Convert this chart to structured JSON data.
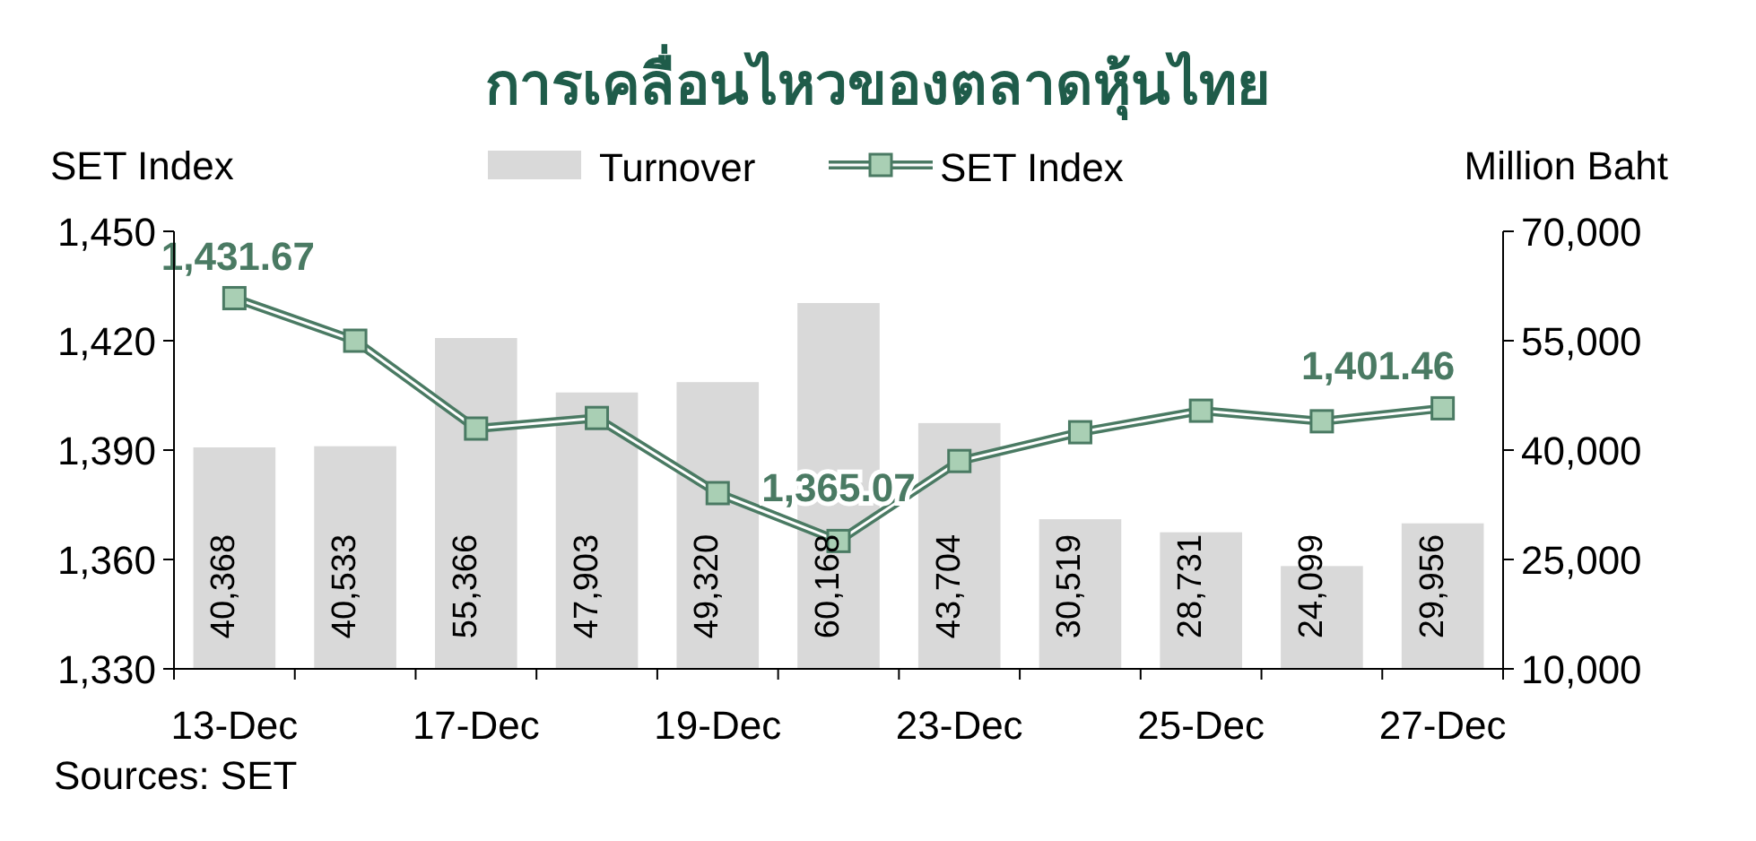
{
  "chart_data": {
    "type": "bar",
    "title": "การเคลื่อนไหวของตลาดหุ้นไทย",
    "ylabel": "SET Index",
    "y2label": "Million Baht",
    "categories": [
      "13-Dec",
      null,
      "17-Dec",
      null,
      "19-Dec",
      null,
      "23-Dec",
      null,
      "25-Dec",
      null,
      "27-Dec"
    ],
    "series": [
      {
        "name": "Turnover",
        "axis": "y2",
        "color": "#d9d9d9",
        "values": [
          40368,
          40533,
          55366,
          47903,
          49320,
          60168,
          43704,
          30519,
          28731,
          24099,
          29956
        ],
        "value_labels": [
          "40,368",
          "40,533",
          "55,366",
          "47,903",
          "49,320",
          "60,168",
          "43,704",
          "30,519",
          "28,731",
          "24,099",
          "29,956"
        ]
      },
      {
        "name": "SET Index",
        "type": "line",
        "color": "#4a7a63",
        "values": [
          1431.67,
          1420,
          1395.9,
          1398.8,
          1378.2,
          1365.07,
          1387,
          1394.9,
          1400.8,
          1397.9,
          1401.46
        ],
        "value_labels": [
          "1,431.67",
          null,
          null,
          null,
          null,
          "1,365.07",
          null,
          null,
          null,
          null,
          "1,401.46"
        ]
      }
    ],
    "marker": "square",
    "legend": "top",
    "ylim": [
      1330,
      1450
    ],
    "yticks": [
      {
        "value": 1330,
        "label": "1,330"
      },
      {
        "value": 1360,
        "label": "1,360"
      },
      {
        "value": 1390,
        "label": "1,390"
      },
      {
        "value": 1420,
        "label": "1,420"
      },
      {
        "value": 1450,
        "label": "1,450"
      }
    ],
    "y2lim": [
      10000,
      70000
    ],
    "y2ticks": [
      {
        "value": 10000,
        "label": "10,000"
      },
      {
        "value": 25000,
        "label": "25,000"
      },
      {
        "value": 40000,
        "label": "40,000"
      },
      {
        "value": 55000,
        "label": "55,000"
      },
      {
        "value": 70000,
        "label": "70,000"
      }
    ],
    "annotations": [
      "Sources: SET"
    ]
  }
}
